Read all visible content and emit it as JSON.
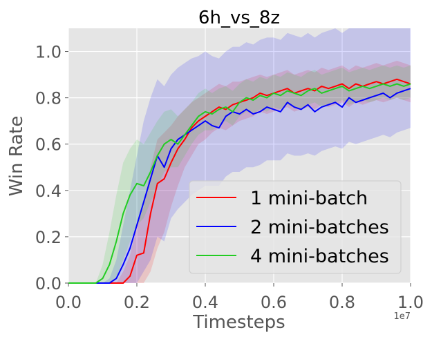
{
  "chart_data": {
    "type": "line",
    "title": "6h_vs_8z",
    "xlabel": "Timesteps",
    "ylabel": "Win Rate",
    "x_offset_label": "1e7",
    "xlim": [
      0.0,
      1.0
    ],
    "ylim": [
      0.0,
      1.1
    ],
    "x_ticks": [
      "0.0",
      "0.2",
      "0.4",
      "0.6",
      "0.8",
      "1.0"
    ],
    "y_ticks": [
      "0.0",
      "0.2",
      "0.4",
      "0.6",
      "0.8",
      "1.0"
    ],
    "grid": true,
    "legend_position": "lower-right",
    "x": [
      0.0,
      0.02,
      0.04,
      0.06,
      0.08,
      0.1,
      0.12,
      0.14,
      0.16,
      0.18,
      0.2,
      0.22,
      0.24,
      0.26,
      0.28,
      0.3,
      0.32,
      0.34,
      0.36,
      0.38,
      0.4,
      0.42,
      0.44,
      0.46,
      0.48,
      0.5,
      0.52,
      0.54,
      0.56,
      0.58,
      0.6,
      0.62,
      0.64,
      0.66,
      0.68,
      0.7,
      0.72,
      0.74,
      0.76,
      0.78,
      0.8,
      0.82,
      0.84,
      0.86,
      0.88,
      0.9,
      0.92,
      0.94,
      0.96,
      0.98,
      1.0
    ],
    "series": [
      {
        "name": "1 mini-batch",
        "color": "#ff0000",
        "values": [
          0,
          0,
          0,
          0,
          0,
          0,
          0,
          0,
          0,
          0.03,
          0.12,
          0.13,
          0.3,
          0.43,
          0.45,
          0.52,
          0.58,
          0.62,
          0.67,
          0.7,
          0.72,
          0.74,
          0.76,
          0.75,
          0.77,
          0.78,
          0.79,
          0.8,
          0.82,
          0.81,
          0.82,
          0.83,
          0.84,
          0.82,
          0.83,
          0.84,
          0.83,
          0.85,
          0.84,
          0.85,
          0.86,
          0.84,
          0.86,
          0.85,
          0.86,
          0.87,
          0.86,
          0.87,
          0.88,
          0.87,
          0.86
        ],
        "lower": [
          0,
          0,
          0,
          0,
          0,
          0,
          0,
          0,
          0,
          0,
          0,
          0,
          0.05,
          0.15,
          0.22,
          0.33,
          0.42,
          0.5,
          0.55,
          0.6,
          0.62,
          0.65,
          0.67,
          0.66,
          0.68,
          0.7,
          0.71,
          0.72,
          0.74,
          0.73,
          0.74,
          0.75,
          0.76,
          0.74,
          0.75,
          0.76,
          0.75,
          0.77,
          0.76,
          0.77,
          0.78,
          0.76,
          0.78,
          0.77,
          0.78,
          0.79,
          0.78,
          0.79,
          0.8,
          0.79,
          0.78
        ],
        "upper": [
          0,
          0,
          0,
          0,
          0,
          0,
          0,
          0,
          0.05,
          0.12,
          0.25,
          0.33,
          0.5,
          0.62,
          0.65,
          0.68,
          0.72,
          0.75,
          0.78,
          0.8,
          0.82,
          0.84,
          0.86,
          0.85,
          0.87,
          0.87,
          0.88,
          0.89,
          0.9,
          0.89,
          0.9,
          0.91,
          0.92,
          0.9,
          0.91,
          0.92,
          0.91,
          0.93,
          0.92,
          0.93,
          0.94,
          0.92,
          0.94,
          0.93,
          0.94,
          0.95,
          0.94,
          0.95,
          0.96,
          0.95,
          0.94
        ]
      },
      {
        "name": "2 mini-batches",
        "color": "#0000ff",
        "values": [
          0,
          0,
          0,
          0,
          0,
          0,
          0,
          0.02,
          0.08,
          0.15,
          0.25,
          0.35,
          0.45,
          0.55,
          0.5,
          0.58,
          0.62,
          0.64,
          0.66,
          0.68,
          0.7,
          0.68,
          0.67,
          0.72,
          0.74,
          0.73,
          0.75,
          0.73,
          0.74,
          0.76,
          0.75,
          0.74,
          0.78,
          0.76,
          0.75,
          0.77,
          0.74,
          0.76,
          0.77,
          0.78,
          0.76,
          0.8,
          0.78,
          0.79,
          0.8,
          0.81,
          0.82,
          0.8,
          0.82,
          0.83,
          0.84
        ],
        "lower": [
          0,
          0,
          0,
          0,
          0,
          0,
          0,
          0,
          0,
          0,
          0,
          0.05,
          0.1,
          0.2,
          0.18,
          0.28,
          0.32,
          0.35,
          0.38,
          0.4,
          0.42,
          0.42,
          0.42,
          0.46,
          0.48,
          0.48,
          0.5,
          0.5,
          0.51,
          0.53,
          0.53,
          0.53,
          0.56,
          0.55,
          0.55,
          0.56,
          0.55,
          0.57,
          0.58,
          0.59,
          0.58,
          0.61,
          0.6,
          0.61,
          0.62,
          0.63,
          0.64,
          0.63,
          0.65,
          0.66,
          0.67
        ],
        "upper": [
          0,
          0,
          0,
          0,
          0,
          0,
          0.02,
          0.1,
          0.25,
          0.4,
          0.55,
          0.7,
          0.8,
          0.88,
          0.85,
          0.9,
          0.93,
          0.95,
          0.97,
          0.98,
          1.0,
          0.98,
          0.97,
          1.0,
          1.02,
          1.02,
          1.04,
          1.03,
          1.05,
          1.06,
          1.06,
          1.05,
          1.08,
          1.07,
          1.06,
          1.08,
          1.06,
          1.08,
          1.09,
          1.1,
          1.08,
          1.1,
          1.1,
          1.1,
          1.1,
          1.1,
          1.1,
          1.1,
          1.1,
          1.1,
          1.1
        ]
      },
      {
        "name": "4 mini-batches",
        "color": "#22cc22",
        "values": [
          0,
          0,
          0,
          0,
          0,
          0.02,
          0.08,
          0.18,
          0.3,
          0.38,
          0.43,
          0.42,
          0.48,
          0.55,
          0.6,
          0.62,
          0.6,
          0.64,
          0.68,
          0.72,
          0.74,
          0.73,
          0.75,
          0.76,
          0.74,
          0.78,
          0.8,
          0.79,
          0.81,
          0.8,
          0.82,
          0.81,
          0.83,
          0.82,
          0.81,
          0.83,
          0.84,
          0.82,
          0.83,
          0.84,
          0.85,
          0.83,
          0.84,
          0.85,
          0.84,
          0.85,
          0.86,
          0.85,
          0.86,
          0.85,
          0.86
        ],
        "lower": [
          0,
          0,
          0,
          0,
          0,
          0,
          0,
          0.02,
          0.1,
          0.18,
          0.25,
          0.28,
          0.35,
          0.42,
          0.48,
          0.5,
          0.5,
          0.55,
          0.6,
          0.64,
          0.66,
          0.66,
          0.68,
          0.7,
          0.68,
          0.72,
          0.74,
          0.73,
          0.75,
          0.74,
          0.76,
          0.75,
          0.77,
          0.76,
          0.75,
          0.77,
          0.78,
          0.76,
          0.77,
          0.78,
          0.79,
          0.77,
          0.78,
          0.79,
          0.78,
          0.79,
          0.8,
          0.79,
          0.8,
          0.79,
          0.8
        ],
        "upper": [
          0,
          0,
          0,
          0,
          0,
          0.08,
          0.22,
          0.38,
          0.52,
          0.58,
          0.62,
          0.6,
          0.65,
          0.7,
          0.74,
          0.75,
          0.72,
          0.75,
          0.78,
          0.82,
          0.84,
          0.82,
          0.84,
          0.85,
          0.83,
          0.86,
          0.88,
          0.87,
          0.89,
          0.88,
          0.9,
          0.89,
          0.91,
          0.9,
          0.89,
          0.91,
          0.92,
          0.9,
          0.91,
          0.92,
          0.93,
          0.91,
          0.92,
          0.93,
          0.92,
          0.93,
          0.94,
          0.93,
          0.94,
          0.93,
          0.94
        ]
      }
    ]
  }
}
